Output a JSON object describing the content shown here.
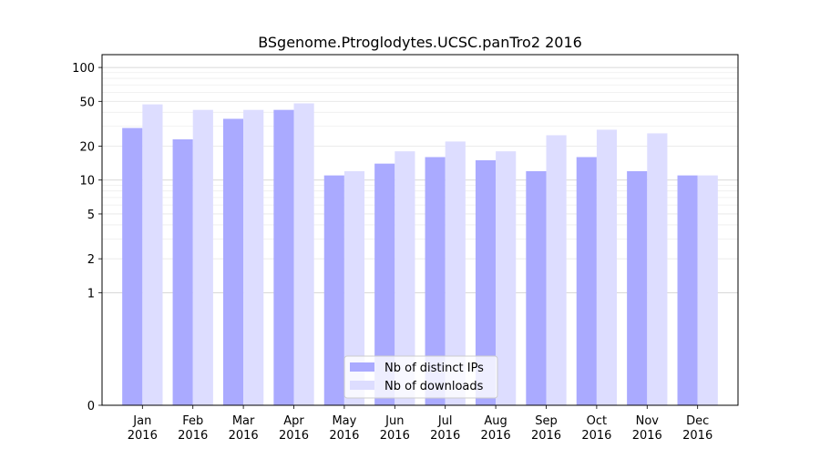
{
  "chart_data": {
    "type": "bar",
    "title": "BSgenome.Ptroglodytes.UCSC.panTro2 2016",
    "xlabel": "",
    "ylabel": "",
    "yscale": "symlog",
    "ylim": [
      0,
      130
    ],
    "yticks": [
      0,
      1,
      2,
      5,
      10,
      20,
      50,
      100
    ],
    "categories": [
      [
        "Jan",
        "2016"
      ],
      [
        "Feb",
        "2016"
      ],
      [
        "Mar",
        "2016"
      ],
      [
        "Apr",
        "2016"
      ],
      [
        "May",
        "2016"
      ],
      [
        "Jun",
        "2016"
      ],
      [
        "Jul",
        "2016"
      ],
      [
        "Aug",
        "2016"
      ],
      [
        "Sep",
        "2016"
      ],
      [
        "Oct",
        "2016"
      ],
      [
        "Nov",
        "2016"
      ],
      [
        "Dec",
        "2016"
      ]
    ],
    "series": [
      {
        "name": "Nb of distinct IPs",
        "color": "#aaaaff",
        "values": [
          29,
          23,
          35,
          42,
          11,
          14,
          16,
          15,
          12,
          16,
          12,
          11
        ]
      },
      {
        "name": "Nb of downloads",
        "color": "#ddddff",
        "values": [
          47,
          42,
          42,
          48,
          12,
          18,
          22,
          18,
          25,
          28,
          26,
          11
        ]
      }
    ],
    "grid": true,
    "legend_position": "bottom-center"
  }
}
